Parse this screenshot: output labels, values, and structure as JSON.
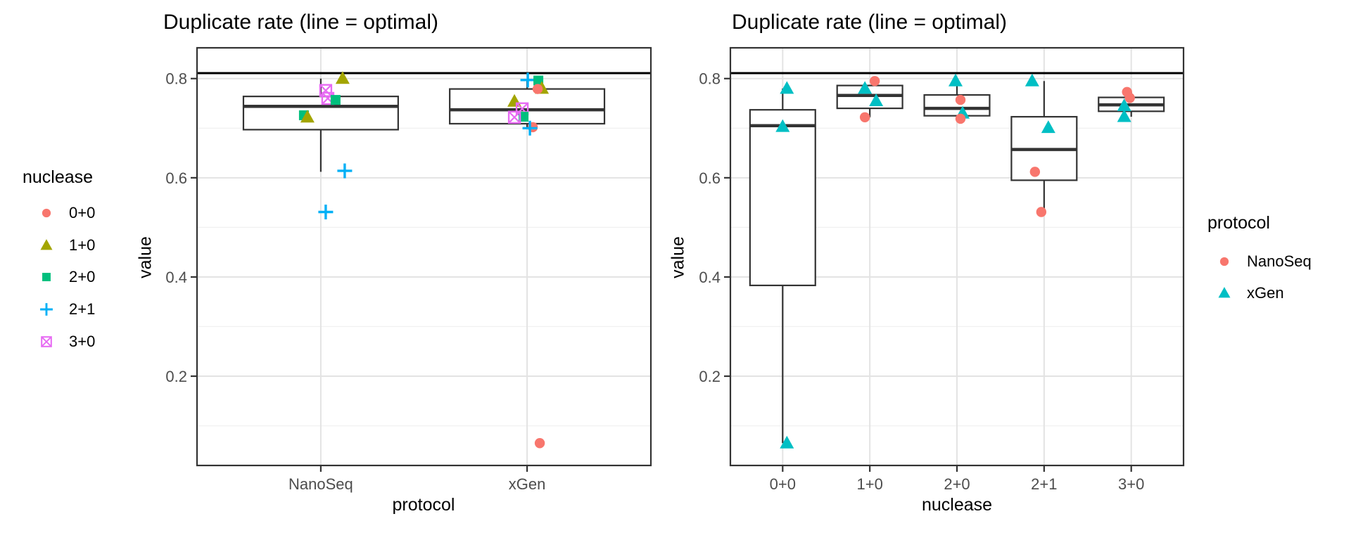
{
  "theme": {
    "background": "#FFFFFF",
    "panel_border": "#333333",
    "box_color": "#333333",
    "grid_major": "#E3E3E3",
    "grid_minor": "#F1F1F1",
    "tick_color": "#333333",
    "tick_label_color": "#4D4D4D",
    "optimal_line_color": "#000000"
  },
  "chart_data": [
    {
      "type": "boxplot+jitter",
      "title": "Duplicate rate (line = optimal)",
      "xlabel": "protocol",
      "ylabel": "value",
      "categories": [
        "NanoSeq",
        "xGen"
      ],
      "ylim": [
        0.02,
        0.862
      ],
      "yticks": [
        0.2,
        0.4,
        0.6,
        0.8
      ],
      "ytick_labels": [
        "0.2",
        "0.4",
        "0.6",
        "0.8"
      ],
      "yticks_minor": [
        0.1,
        0.3,
        0.5,
        0.7
      ],
      "grid": true,
      "optimal_line": 0.811,
      "legend": {
        "title": "nuclease",
        "position": "left",
        "entries": [
          {
            "label": "0+0",
            "shape": "circle",
            "color": "#F8766D"
          },
          {
            "label": "1+0",
            "shape": "triangle",
            "color": "#A3A500"
          },
          {
            "label": "2+0",
            "shape": "square",
            "color": "#00BF7D"
          },
          {
            "label": "2+1",
            "shape": "plus",
            "color": "#00B0F6"
          },
          {
            "label": "3+0",
            "shape": "square-x",
            "color": "#E76BF3"
          }
        ]
      },
      "boxes": [
        {
          "category": "NanoSeq",
          "q1": 0.697,
          "median": 0.744,
          "q3": 0.764,
          "whisker_low": 0.612,
          "whisker_high": 0.8
        },
        {
          "category": "xGen",
          "q1": 0.709,
          "median": 0.737,
          "q3": 0.779,
          "whisker_low": 0.7,
          "whisker_high": 0.797
        }
      ],
      "points": [
        {
          "category": "NanoSeq",
          "group": "1+0",
          "value": 0.8,
          "dx": 31
        },
        {
          "category": "NanoSeq",
          "group": "3+0",
          "value": 0.776,
          "dx": 7
        },
        {
          "category": "NanoSeq",
          "group": "3+0",
          "value": 0.76,
          "dx": 10
        },
        {
          "category": "NanoSeq",
          "group": "2+0",
          "value": 0.757,
          "dx": 21
        },
        {
          "category": "NanoSeq",
          "group": "2+0",
          "value": 0.726,
          "dx": -24
        },
        {
          "category": "NanoSeq",
          "group": "1+0",
          "value": 0.722,
          "dx": -19
        },
        {
          "category": "NanoSeq",
          "group": "2+1",
          "value": 0.614,
          "dx": 34
        },
        {
          "category": "NanoSeq",
          "group": "2+1",
          "value": 0.531,
          "dx": 7
        },
        {
          "category": "xGen",
          "group": "2+1",
          "value": 0.797,
          "dx": 1
        },
        {
          "category": "xGen",
          "group": "2+0",
          "value": 0.796,
          "dx": 16
        },
        {
          "category": "xGen",
          "group": "1+0",
          "value": 0.78,
          "dx": 21
        },
        {
          "category": "xGen",
          "group": "0+0",
          "value": 0.779,
          "dx": 15
        },
        {
          "category": "xGen",
          "group": "1+0",
          "value": 0.754,
          "dx": -18
        },
        {
          "category": "xGen",
          "group": "3+0",
          "value": 0.739,
          "dx": -7
        },
        {
          "category": "xGen",
          "group": "2+0",
          "value": 0.723,
          "dx": -5
        },
        {
          "category": "xGen",
          "group": "3+0",
          "value": 0.722,
          "dx": -18
        },
        {
          "category": "xGen",
          "group": "0+0",
          "value": 0.702,
          "dx": 8
        },
        {
          "category": "xGen",
          "group": "2+1",
          "value": 0.7,
          "dx": 4
        },
        {
          "category": "xGen",
          "group": "0+0",
          "value": 0.065,
          "dx": 18
        }
      ]
    },
    {
      "type": "boxplot+jitter",
      "title": "Duplicate rate (line = optimal)",
      "xlabel": "nuclease",
      "ylabel": "value",
      "categories": [
        "0+0",
        "1+0",
        "2+0",
        "2+1",
        "3+0"
      ],
      "ylim": [
        0.02,
        0.862
      ],
      "yticks": [
        0.2,
        0.4,
        0.6,
        0.8
      ],
      "ytick_labels": [
        "0.2",
        "0.4",
        "0.6",
        "0.8"
      ],
      "yticks_minor": [
        0.1,
        0.3,
        0.5,
        0.7
      ],
      "grid": true,
      "optimal_line": 0.811,
      "legend": {
        "title": "protocol",
        "position": "right",
        "entries": [
          {
            "label": "NanoSeq",
            "shape": "circle",
            "color": "#F8766D"
          },
          {
            "label": "xGen",
            "shape": "triangle",
            "color": "#00BFC4"
          }
        ]
      },
      "boxes": [
        {
          "category": "0+0",
          "q1": 0.383,
          "median": 0.705,
          "q3": 0.737,
          "whisker_low": 0.065,
          "whisker_high": 0.78
        },
        {
          "category": "1+0",
          "q1": 0.74,
          "median": 0.766,
          "q3": 0.786,
          "whisker_low": 0.722,
          "whisker_high": 0.786
        },
        {
          "category": "2+0",
          "q1": 0.725,
          "median": 0.74,
          "q3": 0.767,
          "whisker_low": 0.72,
          "whisker_high": 0.795
        },
        {
          "category": "2+1",
          "q1": 0.595,
          "median": 0.657,
          "q3": 0.723,
          "whisker_low": 0.531,
          "whisker_high": 0.795
        },
        {
          "category": "3+0",
          "q1": 0.734,
          "median": 0.747,
          "q3": 0.762,
          "whisker_low": 0.723,
          "whisker_high": 0.773
        }
      ],
      "points": [
        {
          "category": "0+0",
          "group": "xGen",
          "value": 0.78,
          "dx": 6
        },
        {
          "category": "0+0",
          "group": "xGen",
          "value": 0.703,
          "dx": 0
        },
        {
          "category": "0+0",
          "group": "xGen",
          "value": 0.065,
          "dx": 6
        },
        {
          "category": "1+0",
          "group": "NanoSeq",
          "value": 0.795,
          "dx": 7
        },
        {
          "category": "1+0",
          "group": "xGen",
          "value": 0.78,
          "dx": -7
        },
        {
          "category": "1+0",
          "group": "xGen",
          "value": 0.755,
          "dx": 9
        },
        {
          "category": "1+0",
          "group": "NanoSeq",
          "value": 0.722,
          "dx": -7
        },
        {
          "category": "2+0",
          "group": "xGen",
          "value": 0.795,
          "dx": -2
        },
        {
          "category": "2+0",
          "group": "NanoSeq",
          "value": 0.757,
          "dx": 5
        },
        {
          "category": "2+0",
          "group": "xGen",
          "value": 0.73,
          "dx": 8
        },
        {
          "category": "2+0",
          "group": "NanoSeq",
          "value": 0.719,
          "dx": 5
        },
        {
          "category": "2+1",
          "group": "xGen",
          "value": 0.795,
          "dx": -17
        },
        {
          "category": "2+1",
          "group": "xGen",
          "value": 0.701,
          "dx": 6
        },
        {
          "category": "2+1",
          "group": "NanoSeq",
          "value": 0.612,
          "dx": -13
        },
        {
          "category": "2+1",
          "group": "NanoSeq",
          "value": 0.531,
          "dx": -4
        },
        {
          "category": "3+0",
          "group": "NanoSeq",
          "value": 0.773,
          "dx": -6
        },
        {
          "category": "3+0",
          "group": "NanoSeq",
          "value": 0.761,
          "dx": -2
        },
        {
          "category": "3+0",
          "group": "xGen",
          "value": 0.745,
          "dx": -10
        },
        {
          "category": "3+0",
          "group": "xGen",
          "value": 0.723,
          "dx": -10
        }
      ]
    }
  ]
}
